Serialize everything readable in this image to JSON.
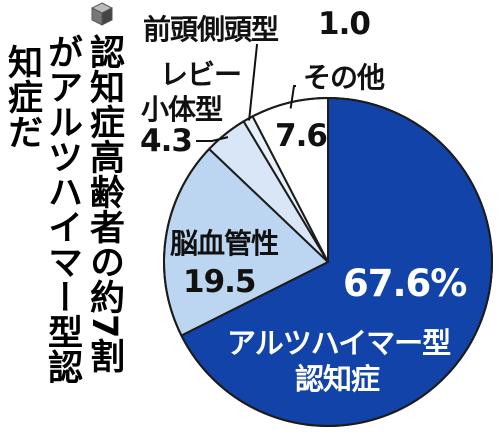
{
  "title": {
    "columns": [
      "認知症高齢者の約7割",
      "がアルツハイマー型認",
      "知症だ"
    ]
  },
  "icon": "cube-icon",
  "colors": {
    "alzheimer": "#1243a8",
    "vascular": "#bcd5f0",
    "lewy": "#d8e6f7",
    "frontotemporal": "#e8f0fa",
    "other": "#ffffff",
    "outline": "#1c1c1c"
  },
  "chart_data": {
    "type": "pie",
    "title": "",
    "slices": [
      {
        "name": "アルツハイマー型認知症",
        "line1": "アルツハイマー型",
        "line2": "認知症",
        "value": 67.6,
        "value_label": "67.6%"
      },
      {
        "name": "脳血管性",
        "value": 19.5,
        "value_label": "19.5"
      },
      {
        "name": "レビー小体型",
        "line1": "レビー",
        "line2": "小体型",
        "value": 4.3,
        "value_label": "4.3"
      },
      {
        "name": "前頭側頭型",
        "value": 1.0,
        "value_label": "1.0"
      },
      {
        "name": "その他",
        "value": 7.6,
        "value_label": "7.6"
      }
    ]
  }
}
